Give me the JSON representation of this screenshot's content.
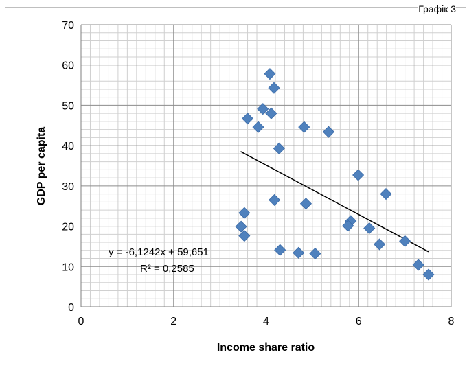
{
  "corner_label": "Графік 3",
  "chart_data": {
    "type": "scatter",
    "xlabel": "Income share ratio",
    "ylabel": "GDP per capita",
    "xlim": [
      0,
      8
    ],
    "ylim": [
      0,
      70
    ],
    "x_ticks": [
      0,
      2,
      4,
      6,
      8
    ],
    "y_ticks": [
      0,
      10,
      20,
      30,
      40,
      50,
      60,
      70
    ],
    "grid": "on (major and minor)",
    "points": [
      {
        "x": 4.08,
        "y": 57.8
      },
      {
        "x": 4.17,
        "y": 54.3
      },
      {
        "x": 3.93,
        "y": 49.1
      },
      {
        "x": 4.11,
        "y": 48.0
      },
      {
        "x": 3.6,
        "y": 46.7
      },
      {
        "x": 3.83,
        "y": 44.6
      },
      {
        "x": 4.82,
        "y": 44.6
      },
      {
        "x": 5.35,
        "y": 43.4
      },
      {
        "x": 4.28,
        "y": 39.3
      },
      {
        "x": 5.99,
        "y": 32.7
      },
      {
        "x": 6.59,
        "y": 28.0
      },
      {
        "x": 4.18,
        "y": 26.5
      },
      {
        "x": 4.86,
        "y": 25.6
      },
      {
        "x": 3.53,
        "y": 23.3
      },
      {
        "x": 5.83,
        "y": 21.3
      },
      {
        "x": 5.77,
        "y": 20.1
      },
      {
        "x": 3.46,
        "y": 19.9
      },
      {
        "x": 6.23,
        "y": 19.5
      },
      {
        "x": 3.53,
        "y": 17.6
      },
      {
        "x": 7.0,
        "y": 16.3
      },
      {
        "x": 6.45,
        "y": 15.5
      },
      {
        "x": 4.3,
        "y": 14.1
      },
      {
        "x": 4.7,
        "y": 13.4
      },
      {
        "x": 5.06,
        "y": 13.2
      },
      {
        "x": 7.29,
        "y": 10.4
      },
      {
        "x": 7.51,
        "y": 8.0
      }
    ],
    "trendline": {
      "slope": -6.1242,
      "intercept": 59.651,
      "x_from": 3.45,
      "x_to": 7.51
    },
    "equation_text": "y = -6,1242x + 59,651",
    "r2_text": "R² = 0,2585",
    "marker_color": "#4f81bd",
    "marker_edge": "#3a6aa7",
    "trend_color": "#000000"
  }
}
